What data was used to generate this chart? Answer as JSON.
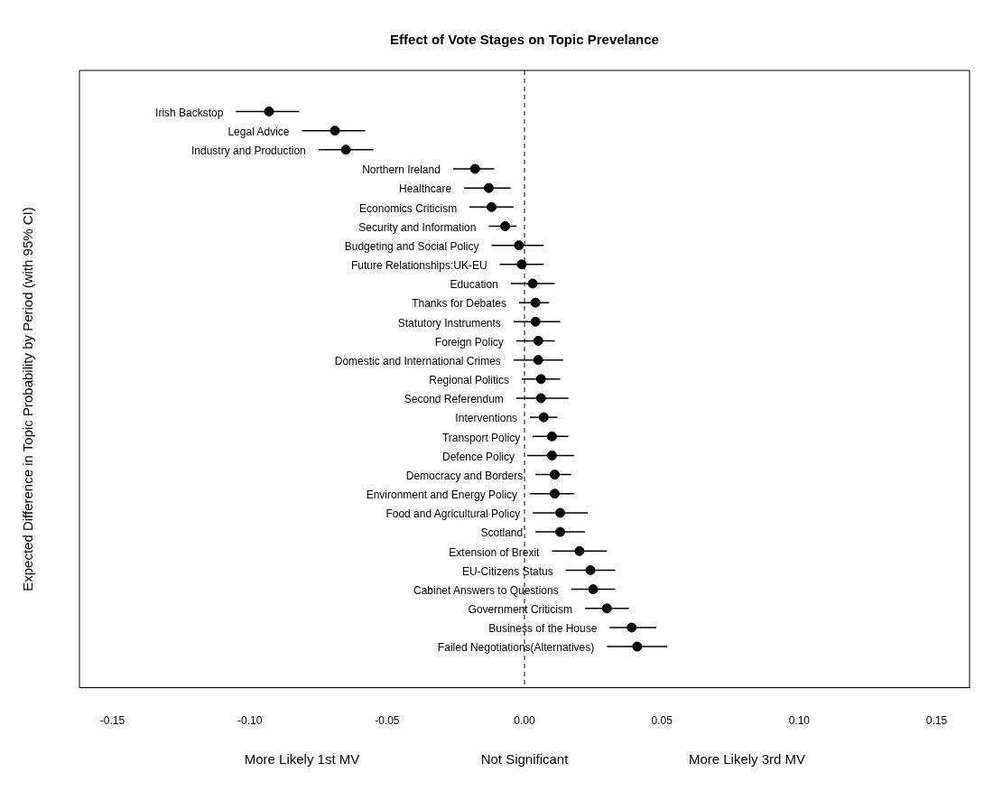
{
  "chart_data": {
    "type": "scatter",
    "orientation": "horizontal",
    "title": "Effect of Vote Stages on Topic Prevelance",
    "ylabel": "Expected Difference in Topic Probability by Period (with 95% CI)",
    "categories": [
      "Irish Backstop",
      "Legal Advice",
      "Industry and Production",
      "Northern Ireland",
      "Healthcare",
      "Economics Criticism",
      "Security and Information",
      "Budgeting and Social Policy",
      "Future Relationships:UK-EU",
      "Education",
      "Thanks for Debates",
      "Statutory Instruments",
      "Foreign Policy",
      "Domestic and International Crimes",
      "Regional Politics",
      "Second Referendum",
      "Interventions",
      "Transport Policy",
      "Defence Policy",
      "Democracy and Borders",
      "Environment and Energy Policy",
      "Food and Agricultural Policy",
      "Scotland",
      "Extension of Brexit",
      "EU-Citizens Status",
      "Cabinet Answers to Questions",
      "Government Criticism",
      "Business of the House",
      "Failed Negotiations(Alternatives)"
    ],
    "series": [
      {
        "color": "#000000",
        "values": [
          -0.093,
          -0.069,
          -0.065,
          -0.018,
          -0.013,
          -0.012,
          -0.007,
          -0.002,
          -0.001,
          0.003,
          0.004,
          0.004,
          0.005,
          0.005,
          0.006,
          0.006,
          0.007,
          0.01,
          0.01,
          0.011,
          0.011,
          0.013,
          0.013,
          0.02,
          0.024,
          0.025,
          0.03,
          0.039,
          0.041
        ],
        "errors": [
          [
            -0.105,
            -0.082
          ],
          [
            -0.081,
            -0.058
          ],
          [
            -0.075,
            -0.055
          ],
          [
            -0.026,
            -0.011
          ],
          [
            -0.022,
            -0.005
          ],
          [
            -0.02,
            -0.004
          ],
          [
            -0.013,
            -0.003
          ],
          [
            -0.012,
            0.007
          ],
          [
            -0.009,
            0.007
          ],
          [
            -0.005,
            0.011
          ],
          [
            -0.002,
            0.009
          ],
          [
            -0.004,
            0.013
          ],
          [
            -0.003,
            0.011
          ],
          [
            -0.004,
            0.014
          ],
          [
            -0.001,
            0.013
          ],
          [
            -0.003,
            0.016
          ],
          [
            0.002,
            0.012
          ],
          [
            0.003,
            0.016
          ],
          [
            0.001,
            0.018
          ],
          [
            0.004,
            0.017
          ],
          [
            0.002,
            0.018
          ],
          [
            0.003,
            0.023
          ],
          [
            0.004,
            0.022
          ],
          [
            0.01,
            0.03
          ],
          [
            0.015,
            0.033
          ],
          [
            0.017,
            0.033
          ],
          [
            0.022,
            0.038
          ],
          [
            0.031,
            0.048
          ],
          [
            0.03,
            0.052
          ]
        ]
      }
    ],
    "xlim": [
      -0.162,
      0.162
    ],
    "xticks": [
      {
        "value": -0.15,
        "label": "-0.15"
      },
      {
        "value": -0.1,
        "label": "-0.10"
      },
      {
        "value": -0.05,
        "label": "-0.05"
      },
      {
        "value": 0,
        "label": "0.00"
      },
      {
        "value": 0.05,
        "label": "0.05"
      },
      {
        "value": 0.1,
        "label": "0.10"
      },
      {
        "value": 0.15,
        "label": "0.15"
      }
    ],
    "ref_lines": [
      {
        "axis": "x",
        "value": 0,
        "line_style": "dashed",
        "color": "#000000"
      }
    ],
    "annotations": [
      "More Likely 1st MV",
      "Not Significant",
      "More Likely 3rd MV"
    ],
    "marker": "circle",
    "legend": false,
    "tick_labels": "x"
  }
}
